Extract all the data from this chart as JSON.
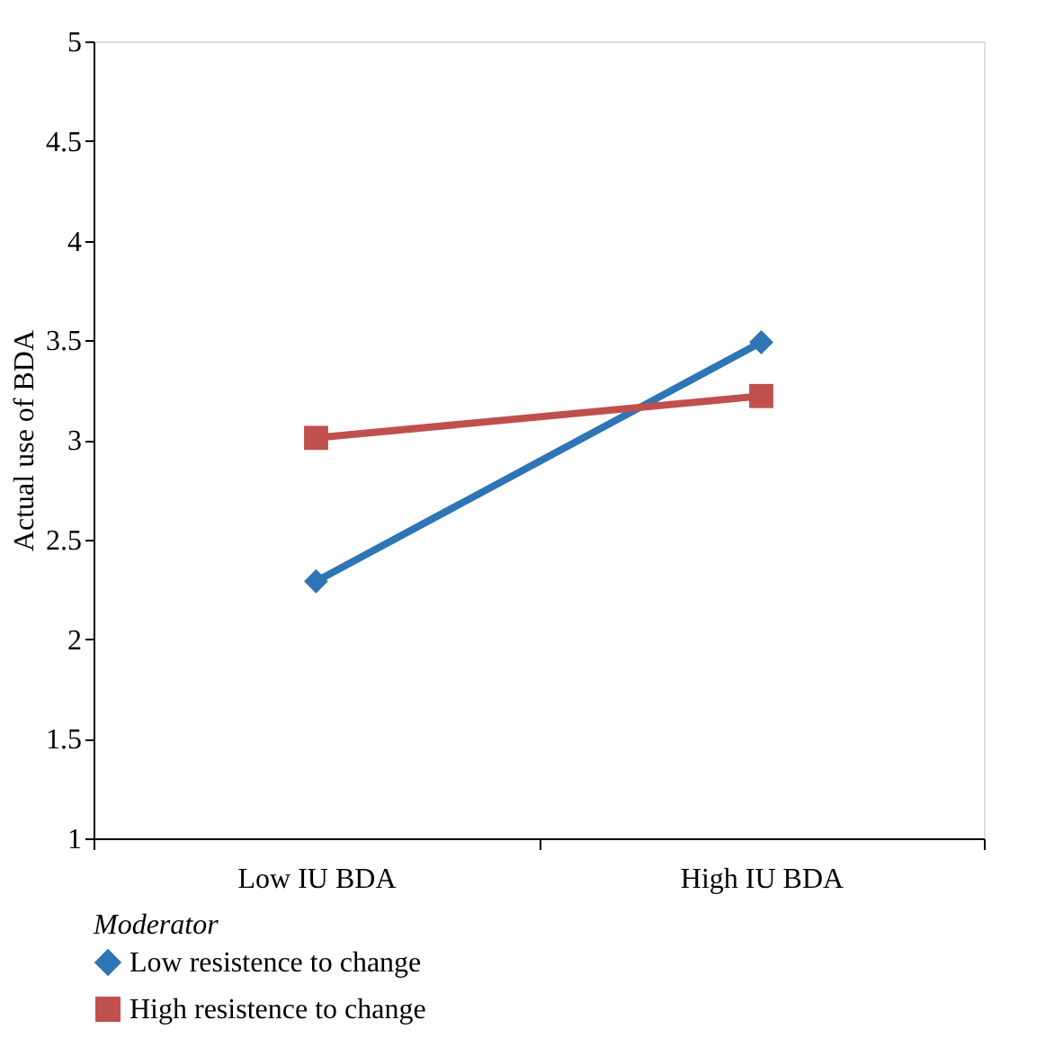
{
  "chart_data": {
    "type": "line",
    "ylabel": "Actual use of BDA",
    "legend_title": "Moderator",
    "categories": [
      "Low IU BDA",
      "High IU BDA"
    ],
    "series": [
      {
        "name": "Low resistence to change",
        "color": "#2e75b6",
        "values": [
          2.29,
          3.49
        ],
        "marker": "diamond"
      },
      {
        "name": "High resistence to change",
        "color": "#c0504d",
        "values": [
          3.01,
          3.22
        ],
        "marker": "square"
      }
    ],
    "ylim": [
      1,
      5
    ],
    "yticks": [
      1,
      1.5,
      2,
      2.5,
      3,
      3.5,
      4,
      4.5,
      5
    ],
    "grid": false,
    "legend": "bottom left",
    "line_style": "solid"
  }
}
